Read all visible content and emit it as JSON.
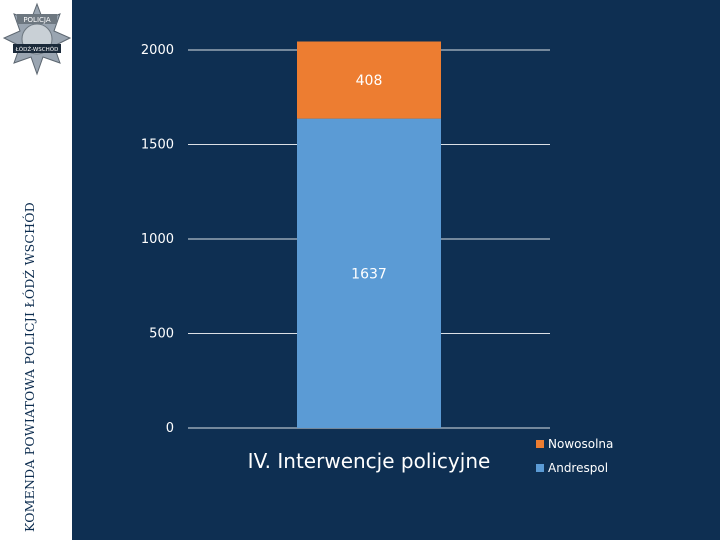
{
  "sidebar": {
    "vertical_text": "KOMENDA POWIATOWA POLICJI ŁÓDŹ WSCHÓD",
    "logo_icon": "police-star-badge-icon",
    "logo_text_top": "POLICJA",
    "logo_text_bottom": "ŁÓDŹ-WSCHÓD"
  },
  "colors": {
    "background": "#0e2f52",
    "sidebar": "#ffffff",
    "andrespol": "#5b9bd5",
    "nowosolna": "#ed7d31",
    "text": "#ffffff",
    "grid": "#ffffff"
  },
  "chart_data": {
    "type": "bar",
    "stacked": true,
    "categories": [
      "IV. Interwencje policyjne"
    ],
    "series": [
      {
        "name": "Andrespol",
        "values": [
          1637
        ],
        "color": "#5b9bd5"
      },
      {
        "name": "Nowosolna",
        "values": [
          408
        ],
        "color": "#ed7d31"
      }
    ],
    "title": "",
    "xlabel": "",
    "ylabel": "",
    "ylim": [
      0,
      2000
    ],
    "yticks": [
      0,
      500,
      1000,
      1500,
      2000
    ],
    "grid": true,
    "legend_position": "bottom-right"
  }
}
